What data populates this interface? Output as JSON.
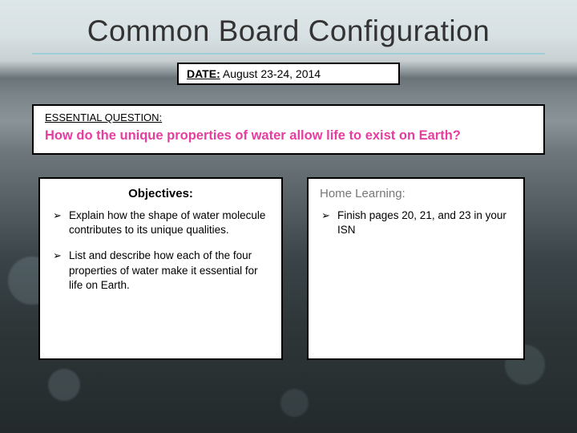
{
  "title": "Common Board Configuration",
  "date_label": "DATE:",
  "date_value": "August 23-24, 2014",
  "essential_question": {
    "label": "ESSENTIAL QUESTION:",
    "text": "How do the unique properties of water allow life to exist on Earth?"
  },
  "objectives": {
    "heading": "Objectives:",
    "items": [
      "Explain how the shape of water molecule contributes to its unique qualities.",
      "List and describe how each of the four properties of water make it essential for life on Earth."
    ]
  },
  "home_learning": {
    "heading": "Home Learning:",
    "items": [
      "Finish pages 20, 21, and 23 in your ISN"
    ]
  },
  "colors": {
    "accent_underline": "#9ecfd8",
    "eq_text": "#e63da0",
    "home_heading": "#777777"
  }
}
